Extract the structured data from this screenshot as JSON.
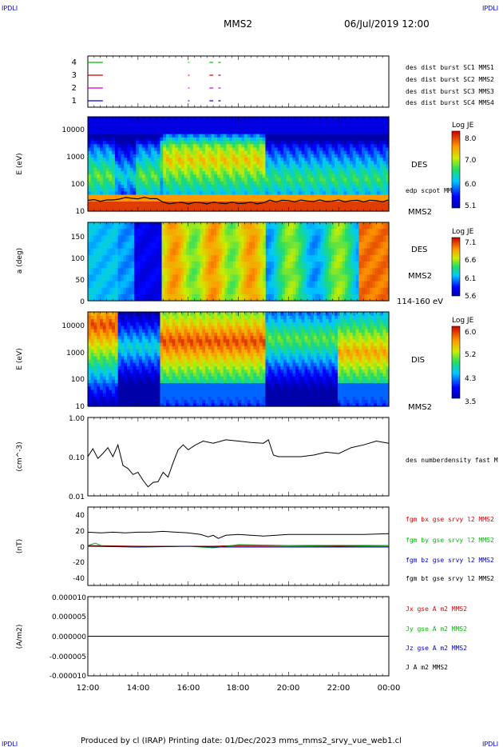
{
  "header": {
    "corner_left": "IPDLI",
    "corner_right": "IPDLI",
    "title": "MMS2",
    "date": "06/Jul/2019 12:00"
  },
  "footer": {
    "text": "Produced by cl (IRAP)   Printing date: 01/Dec/2023   mms_mms2_srvy_vue_web1.cl",
    "corner_left": "IPDLI",
    "corner_right": "IPDLI"
  },
  "colors": {
    "sc1": "#0000cc",
    "sc2": "#cc00cc",
    "sc3": "#cc0000",
    "sc4": "#00bb00",
    "bx": "#dd0000",
    "by": "#00bb00",
    "bz": "#0000cc",
    "bt": "#000000"
  },
  "chart_data": [
    {
      "type": "line",
      "panel": "burst",
      "x_ticks": [
        "12:00",
        "14:00",
        "16:00",
        "18:00",
        "20:00",
        "22:00",
        "00:00"
      ],
      "ylim": [
        0.5,
        4.5
      ],
      "y_ticks": [
        "1",
        "2",
        "3",
        "4"
      ],
      "legend": [
        "des dist burst SC1 MMS1",
        "des dist burst SC2 MMS2",
        "des dist burst SC3 MMS3",
        "des dist burst SC4 MMS4"
      ],
      "series": [
        {
          "name": "des dist burst SC1 MMS1",
          "level": 1,
          "color_key": "sc1",
          "intervals_h": [
            [
              0,
              0.6
            ],
            [
              4.0,
              4.05
            ],
            [
              4.85,
              5.0
            ],
            [
              5.2,
              5.3
            ]
          ]
        },
        {
          "name": "des dist burst SC2 MMS2",
          "level": 2,
          "color_key": "sc2",
          "intervals_h": [
            [
              0,
              0.6
            ],
            [
              4.0,
              4.05
            ],
            [
              4.85,
              5.0
            ],
            [
              5.2,
              5.3
            ]
          ]
        },
        {
          "name": "des dist burst SC3 MMS3",
          "level": 3,
          "color_key": "sc3",
          "intervals_h": [
            [
              0,
              0.6
            ],
            [
              4.0,
              4.05
            ],
            [
              4.85,
              5.0
            ],
            [
              5.2,
              5.3
            ]
          ]
        },
        {
          "name": "des dist burst SC4 MMS4",
          "level": 4,
          "color_key": "sc4",
          "intervals_h": [
            [
              0,
              0.6
            ],
            [
              4.0,
              4.05
            ],
            [
              4.85,
              5.0
            ],
            [
              5.2,
              5.3
            ]
          ]
        }
      ]
    },
    {
      "type": "heatmap",
      "panel": "des_energy",
      "ylabel": "E (eV)",
      "yscale": "log",
      "ylim": [
        10,
        30000
      ],
      "y_ticks": [
        "10",
        "100",
        "1000",
        "10000"
      ],
      "right_label": "DES",
      "overlay_label": "edp scpot MMS2",
      "probe_label": "MMS2",
      "colorbar": {
        "title": "Log JE",
        "ticks": [
          "8.0",
          "7.0",
          "6.0",
          "5.1"
        ],
        "range": [
          5.1,
          8.2
        ]
      }
    },
    {
      "type": "heatmap",
      "panel": "des_pitch",
      "ylabel": "a (deg)",
      "ylim": [
        0,
        180
      ],
      "y_ticks": [
        "0",
        "50",
        "100",
        "150"
      ],
      "right_label": "DES",
      "probe_label": "MMS2",
      "energy_label": "114-160 eV",
      "colorbar": {
        "title": "Log JE",
        "ticks": [
          "7.1",
          "6.6",
          "6.1",
          "5.6"
        ],
        "range": [
          5.6,
          7.2
        ]
      }
    },
    {
      "type": "heatmap",
      "panel": "dis_energy",
      "ylabel": "E (eV)",
      "yscale": "log",
      "ylim": [
        10,
        30000
      ],
      "y_ticks": [
        "10",
        "100",
        "1000",
        "10000"
      ],
      "right_label": "DIS",
      "probe_label": "MMS2",
      "colorbar": {
        "title": "Log JE",
        "ticks": [
          "6.0",
          "5.2",
          "4.3",
          "3.5"
        ],
        "range": [
          3.5,
          6.1
        ]
      }
    },
    {
      "type": "line",
      "panel": "density",
      "ylabel": "(cm^-3)",
      "yscale": "log",
      "ylim": [
        0.01,
        1.0
      ],
      "y_ticks": [
        "1.00",
        "0.10",
        "0.01"
      ],
      "legend": [
        "des numberdensity fast M"
      ],
      "series": [
        {
          "name": "des numberdensity fast M",
          "color_key": "bt",
          "x_h": [
            0,
            0.2,
            0.4,
            0.6,
            0.8,
            1.0,
            1.2,
            1.4,
            1.6,
            1.8,
            2.0,
            2.2,
            2.4,
            2.6,
            2.8,
            3.0,
            3.2,
            3.4,
            3.6,
            3.8,
            4.0,
            4.3,
            4.6,
            5.0,
            5.5,
            6.0,
            6.5,
            7.0,
            7.2,
            7.4,
            7.6,
            8.0,
            8.5,
            9.0,
            9.5,
            10.0,
            10.5,
            11.0,
            11.5,
            12.0
          ],
          "y": [
            0.1,
            0.16,
            0.09,
            0.12,
            0.17,
            0.1,
            0.2,
            0.06,
            0.05,
            0.035,
            0.04,
            0.025,
            0.017,
            0.022,
            0.023,
            0.04,
            0.03,
            0.07,
            0.15,
            0.2,
            0.15,
            0.2,
            0.25,
            0.22,
            0.27,
            0.25,
            0.23,
            0.22,
            0.27,
            0.11,
            0.1,
            0.1,
            0.1,
            0.11,
            0.13,
            0.12,
            0.17,
            0.2,
            0.25,
            0.22
          ]
        }
      ]
    },
    {
      "type": "line",
      "panel": "magnetic_field",
      "ylabel": "(nT)",
      "ylim": [
        -50,
        50
      ],
      "y_ticks": [
        "40",
        "20",
        "0",
        "-20",
        "-40"
      ],
      "legend": [
        "fgm bx gse srvy l2 MMS2",
        "fgm by gse srvy l2 MMS2",
        "fgm bz gse srvy l2 MMS2",
        "fgm bt gse srvy l2 MMS2"
      ],
      "series": [
        {
          "name": "fgm bt gse srvy l2 MMS2",
          "color_key": "bt",
          "x_h": [
            0,
            0.5,
            1.0,
            1.5,
            2.0,
            2.5,
            3.0,
            3.5,
            4.0,
            4.5,
            4.8,
            5.0,
            5.2,
            5.5,
            6.0,
            6.5,
            7.0,
            7.5,
            8.0,
            9.0,
            10.0,
            11.0,
            12.0
          ],
          "y": [
            18,
            17,
            18,
            17,
            18,
            18,
            19,
            18,
            17,
            15,
            12,
            14,
            10,
            14,
            15,
            14,
            13,
            14,
            15,
            15,
            15,
            15,
            16
          ]
        },
        {
          "name": "fgm bx gse srvy l2 MMS2",
          "color_key": "bx",
          "x_h": [
            0,
            2,
            4,
            5,
            6,
            8,
            10,
            12
          ],
          "y": [
            1,
            0,
            0,
            0,
            1,
            1,
            1,
            1
          ]
        },
        {
          "name": "fgm by gse srvy l2 MMS2",
          "color_key": "by",
          "x_h": [
            0,
            0.3,
            0.6,
            2,
            4,
            5,
            6,
            8,
            10,
            12
          ],
          "y": [
            1,
            4,
            0,
            -1,
            0,
            -2,
            2,
            1,
            0,
            1
          ]
        },
        {
          "name": "fgm bz gse srvy l2 MMS2",
          "color_key": "bz",
          "x_h": [
            0,
            2,
            4,
            5,
            6,
            8,
            10,
            12
          ],
          "y": [
            0,
            -1,
            0,
            -1,
            -1,
            -1,
            -1,
            -1
          ]
        }
      ]
    },
    {
      "type": "line",
      "panel": "current_density",
      "ylabel": "(A/m2)",
      "ylim": [
        -1e-05,
        1e-05
      ],
      "y_ticks": [
        "0.000010",
        "0.000005",
        "0.000000",
        "-0.000005",
        "-0.000010"
      ],
      "legend": [
        "Jx gse A m2 MMS2",
        "Jy gse A m2 MMS2",
        "Jz gse A m2 MMS2",
        "J A m2 MMS2"
      ],
      "series": [
        {
          "name": "J A m2 MMS2",
          "color_key": "bt",
          "x_h": [
            0,
            12
          ],
          "y": [
            0,
            0
          ]
        }
      ]
    }
  ]
}
